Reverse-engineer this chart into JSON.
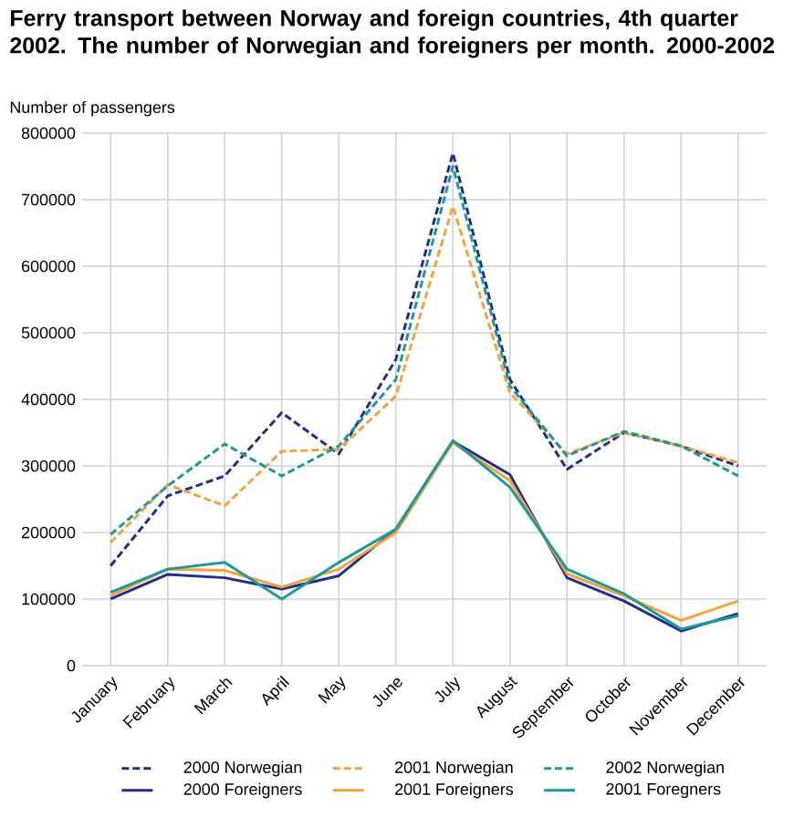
{
  "chart_data": {
    "type": "line",
    "title": "Ferry transport between Norway and foreign countries, 4th quarter 2002. The number of Norwegian and foreigners per month. 2000-2002",
    "ylabel": "Number of passengers",
    "categories": [
      "January",
      "February",
      "March",
      "April",
      "May",
      "June",
      "July",
      "August",
      "September",
      "October",
      "November",
      "December"
    ],
    "series": [
      {
        "name": "2000 Norwegian",
        "color": "#1f2f8c",
        "line_style": "dashed",
        "values": [
          150000,
          255000,
          285000,
          380000,
          318000,
          460000,
          770000,
          430000,
          295000,
          350000,
          330000,
          300000
        ]
      },
      {
        "name": "2001 Norwegian",
        "color": "#f7a13a",
        "line_style": "dashed",
        "values": [
          185000,
          272000,
          240000,
          322000,
          325000,
          405000,
          690000,
          410000,
          318000,
          350000,
          330000,
          305000
        ]
      },
      {
        "name": "2002 Norwegian",
        "color": "#1a9a9a",
        "line_style": "dashed",
        "values": [
          197000,
          270000,
          333000,
          285000,
          330000,
          430000,
          750000,
          420000,
          315000,
          352000,
          330000,
          285000
        ]
      },
      {
        "name": "2000 Foreigners",
        "color": "#1f2f8c",
        "line_style": "solid",
        "values": [
          100000,
          137000,
          132000,
          115000,
          135000,
          205000,
          337000,
          287000,
          132000,
          97000,
          52000,
          78000
        ]
      },
      {
        "name": "2001 Foreigners",
        "color": "#f7a13a",
        "line_style": "solid",
        "values": [
          105000,
          145000,
          143000,
          118000,
          145000,
          200000,
          335000,
          278000,
          138000,
          105000,
          68000,
          97000
        ]
      },
      {
        "name": "2001 Foregners",
        "color": "#1a9a9a",
        "line_style": "solid",
        "values": [
          110000,
          145000,
          155000,
          100000,
          155000,
          205000,
          338000,
          268000,
          145000,
          108000,
          55000,
          75000
        ]
      }
    ],
    "ylim": [
      0,
      800000
    ],
    "yticks": [
      0,
      100000,
      200000,
      300000,
      400000,
      500000,
      600000,
      700000,
      800000
    ],
    "grid": true,
    "legend": "bottom"
  }
}
